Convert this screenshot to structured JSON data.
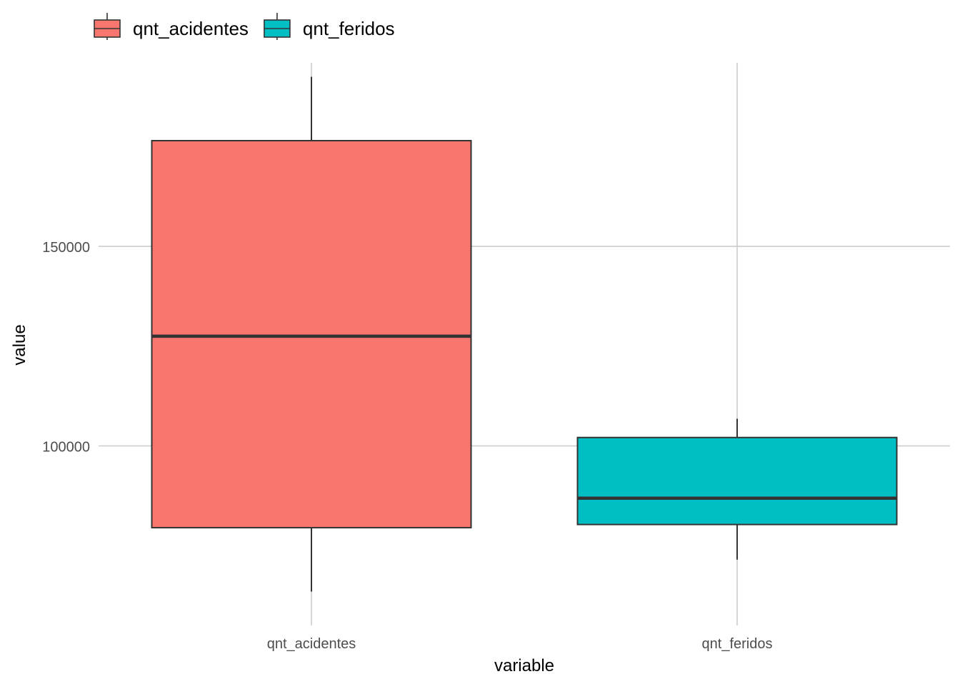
{
  "chart_data": {
    "type": "boxplot",
    "title": "",
    "xlabel": "variable",
    "ylabel": "value",
    "ylim": [
      55000,
      196000
    ],
    "y_ticks": [
      100000,
      150000
    ],
    "y_tick_labels": [
      "100000",
      "150000"
    ],
    "categories": [
      "qnt_acidentes",
      "qnt_feridos"
    ],
    "legend": {
      "position": "top-left",
      "entries": [
        "qnt_acidentes",
        "qnt_feridos"
      ]
    },
    "grid": true,
    "series": [
      {
        "name": "qnt_acidentes",
        "color": "#F8766D",
        "min": 63500,
        "q1": 79500,
        "median": 127500,
        "q3": 176500,
        "max": 192500
      },
      {
        "name": "qnt_feridos",
        "color": "#00BFC4",
        "min": 71500,
        "q1": 80300,
        "median": 86900,
        "q3": 102100,
        "max": 106800
      }
    ]
  }
}
